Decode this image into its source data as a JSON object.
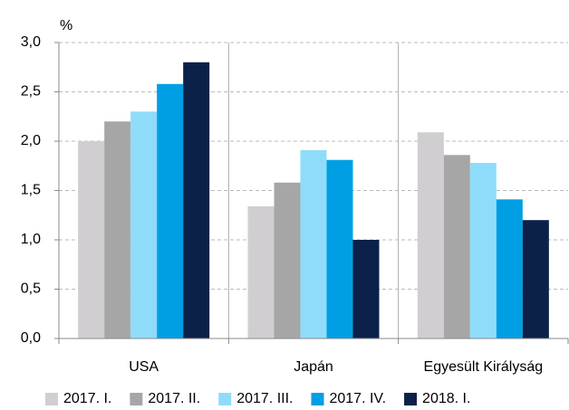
{
  "chart_data": {
    "type": "bar",
    "y_label": "%",
    "categories": [
      "USA",
      "Japán",
      "Egyesült Királyság"
    ],
    "series": [
      {
        "name": "2017. I.",
        "color": "#d0ced0",
        "values": [
          2.0,
          1.34,
          2.09
        ]
      },
      {
        "name": "2017. II.",
        "color": "#a6a6a6",
        "values": [
          2.2,
          1.58,
          1.86
        ]
      },
      {
        "name": "2017. III.",
        "color": "#8fdcfa",
        "values": [
          2.3,
          1.91,
          1.78
        ]
      },
      {
        "name": "2017. IV.",
        "color": "#009fe3",
        "values": [
          2.58,
          1.81,
          1.41
        ]
      },
      {
        "name": "2018. I.",
        "color": "#0b2149",
        "values": [
          2.8,
          1.0,
          1.2
        ]
      }
    ],
    "ylim": [
      0,
      3
    ],
    "yticks": [
      {
        "value": 0,
        "label": "0,0"
      },
      {
        "value": 0.5,
        "label": "0,5"
      },
      {
        "value": 1,
        "label": "1,0"
      },
      {
        "value": 1.5,
        "label": "1,5"
      },
      {
        "value": 2,
        "label": "2,0"
      },
      {
        "value": 2.5,
        "label": "2,5"
      },
      {
        "value": 3,
        "label": "3,0"
      }
    ],
    "grid": true,
    "legend": "bottom"
  }
}
